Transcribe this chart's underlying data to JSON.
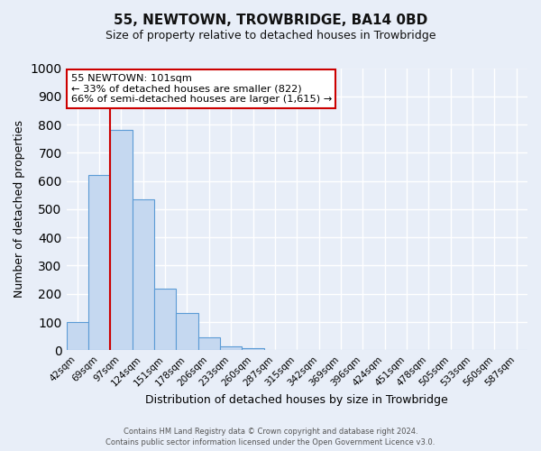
{
  "title": "55, NEWTOWN, TROWBRIDGE, BA14 0BD",
  "subtitle": "Size of property relative to detached houses in Trowbridge",
  "xlabel": "Distribution of detached houses by size in Trowbridge",
  "ylabel": "Number of detached properties",
  "bar_labels": [
    "42sqm",
    "69sqm",
    "97sqm",
    "124sqm",
    "151sqm",
    "178sqm",
    "206sqm",
    "233sqm",
    "260sqm",
    "287sqm",
    "315sqm",
    "342sqm",
    "369sqm",
    "396sqm",
    "424sqm",
    "451sqm",
    "478sqm",
    "505sqm",
    "533sqm",
    "560sqm",
    "587sqm"
  ],
  "bar_values": [
    100,
    620,
    780,
    535,
    220,
    133,
    45,
    15,
    8,
    0,
    0,
    0,
    0,
    0,
    0,
    0,
    0,
    0,
    0,
    0,
    0
  ],
  "bar_color": "#c5d8f0",
  "bar_edge_color": "#5b9bd5",
  "vline_x": 2.0,
  "vline_color": "#cc0000",
  "annotation_text": "55 NEWTOWN: 101sqm\n← 33% of detached houses are smaller (822)\n66% of semi-detached houses are larger (1,615) →",
  "annotation_box_color": "#ffffff",
  "annotation_box_edge": "#cc0000",
  "ylim": [
    0,
    1000
  ],
  "yticks": [
    0,
    100,
    200,
    300,
    400,
    500,
    600,
    700,
    800,
    900,
    1000
  ],
  "footer_line1": "Contains HM Land Registry data © Crown copyright and database right 2024.",
  "footer_line2": "Contains public sector information licensed under the Open Government Licence v3.0.",
  "background_color": "#e8eef8",
  "grid_color": "#ffffff",
  "title_fontsize": 11,
  "subtitle_fontsize": 9
}
